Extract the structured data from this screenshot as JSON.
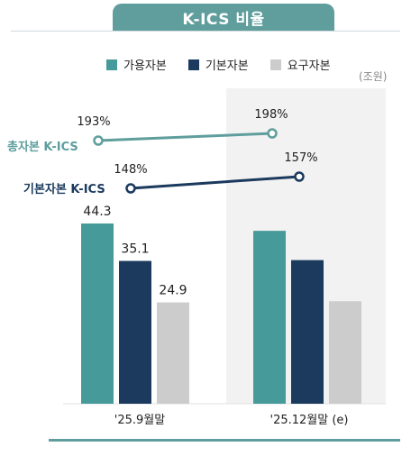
{
  "title": "K-ICS 비율",
  "unit": "(조원)",
  "colors": {
    "available": "#469a9a",
    "basic": "#1b3a5e",
    "required": "#cccccc",
    "teal_line": "#5f9e9c",
    "navy_line": "#1b3a5e"
  },
  "legend": [
    "가용자본",
    "기본자본",
    "요구자본"
  ],
  "chart_data": {
    "type": "bar",
    "categories": [
      "'25.9월말",
      "'25.12월말 (e)"
    ],
    "series": [
      {
        "name": "가용자본",
        "values": [
          44.3,
          null
        ],
        "labels": [
          "44.3",
          ""
        ]
      },
      {
        "name": "기본자본",
        "values": [
          35.1,
          null
        ],
        "labels": [
          "35.1",
          ""
        ]
      },
      {
        "name": "요구자본",
        "values": [
          24.9,
          null
        ],
        "labels": [
          "24.9",
          ""
        ]
      }
    ],
    "ratio_lines": [
      {
        "name": "총자본 K-ICS",
        "values": [
          193,
          198
        ],
        "labels": [
          "193%",
          "198%"
        ]
      },
      {
        "name": "기본자본 K-ICS",
        "values": [
          148,
          157
        ],
        "labels": [
          "148%",
          "157%"
        ]
      }
    ],
    "approx_second_period_bars": [
      42.5,
      35.3,
      25.2
    ],
    "ylim": [
      0,
      50
    ]
  }
}
